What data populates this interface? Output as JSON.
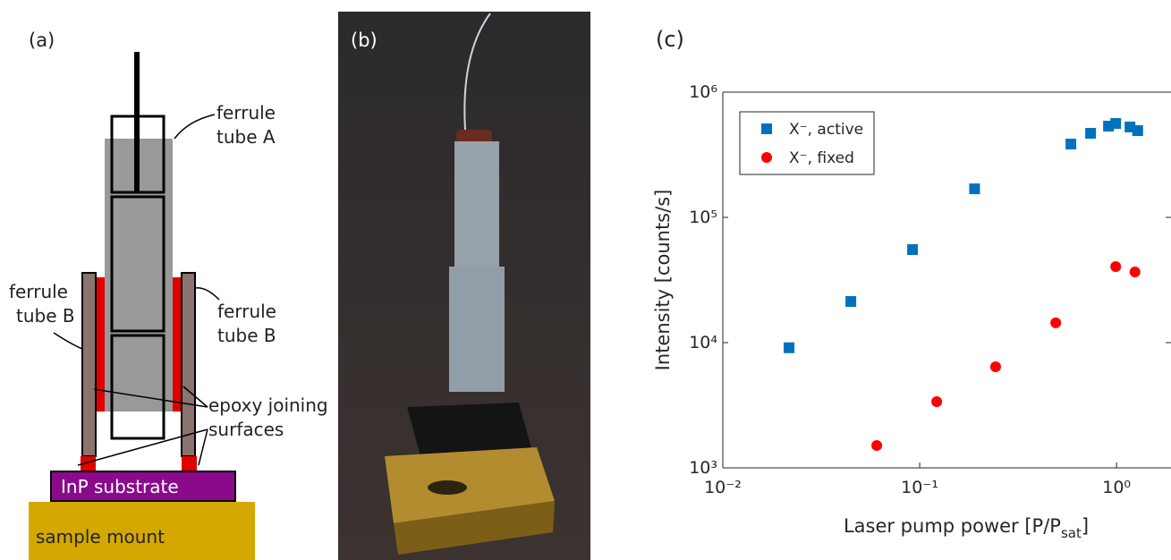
{
  "diagram": {
    "label": "(a)",
    "tube_a": [
      "ferrule",
      "tube A"
    ],
    "tube_b_left": [
      "ferrule",
      "tube B"
    ],
    "tube_b_right": [
      "ferrule",
      "tube B"
    ],
    "epoxy": [
      "epoxy joining",
      "surfaces"
    ],
    "substrate": "InP substrate",
    "mount": "sample mount"
  },
  "photo": {
    "label": "(b)"
  },
  "chart_data": {
    "type": "scatter",
    "panel_label": "(c)",
    "x_label": [
      "Laser pump power [P/P",
      "sat",
      "]"
    ],
    "y_label": "Intensity [counts/s]",
    "xlog": true,
    "ylog": true,
    "xlim": [
      0.01,
      1.89
    ],
    "ylim": [
      1000,
      1000000
    ],
    "xticks": [
      {
        "value": 0.01,
        "label": "10⁻²"
      },
      {
        "value": 0.1,
        "label": "10⁻¹"
      },
      {
        "value": 1,
        "label": "10⁰"
      }
    ],
    "yticks": [
      {
        "value": 1000,
        "label": "10³"
      },
      {
        "value": 10000,
        "label": "10⁴"
      },
      {
        "value": 100000,
        "label": "10⁵"
      },
      {
        "value": 1000000,
        "label": "10⁶"
      }
    ],
    "legend": "upper left",
    "series": [
      {
        "name": "X⁻, active",
        "color": "#0072bd",
        "marker": "square",
        "x": [
          0.0217,
          0.0447,
          0.092,
          0.19,
          0.586,
          0.738,
          0.91,
          0.99,
          1.17,
          1.28
        ],
        "values": [
          9100,
          21300,
          55300,
          169000,
          385000,
          469000,
          535000,
          562000,
          527000,
          493000
        ]
      },
      {
        "name": "X⁻, fixed",
        "color": "#ff0000",
        "marker": "circle",
        "x": [
          0.0605,
          0.122,
          0.243,
          0.491,
          0.99,
          1.24
        ],
        "values": [
          1510,
          3380,
          6410,
          14400,
          40500,
          36700
        ]
      }
    ]
  }
}
